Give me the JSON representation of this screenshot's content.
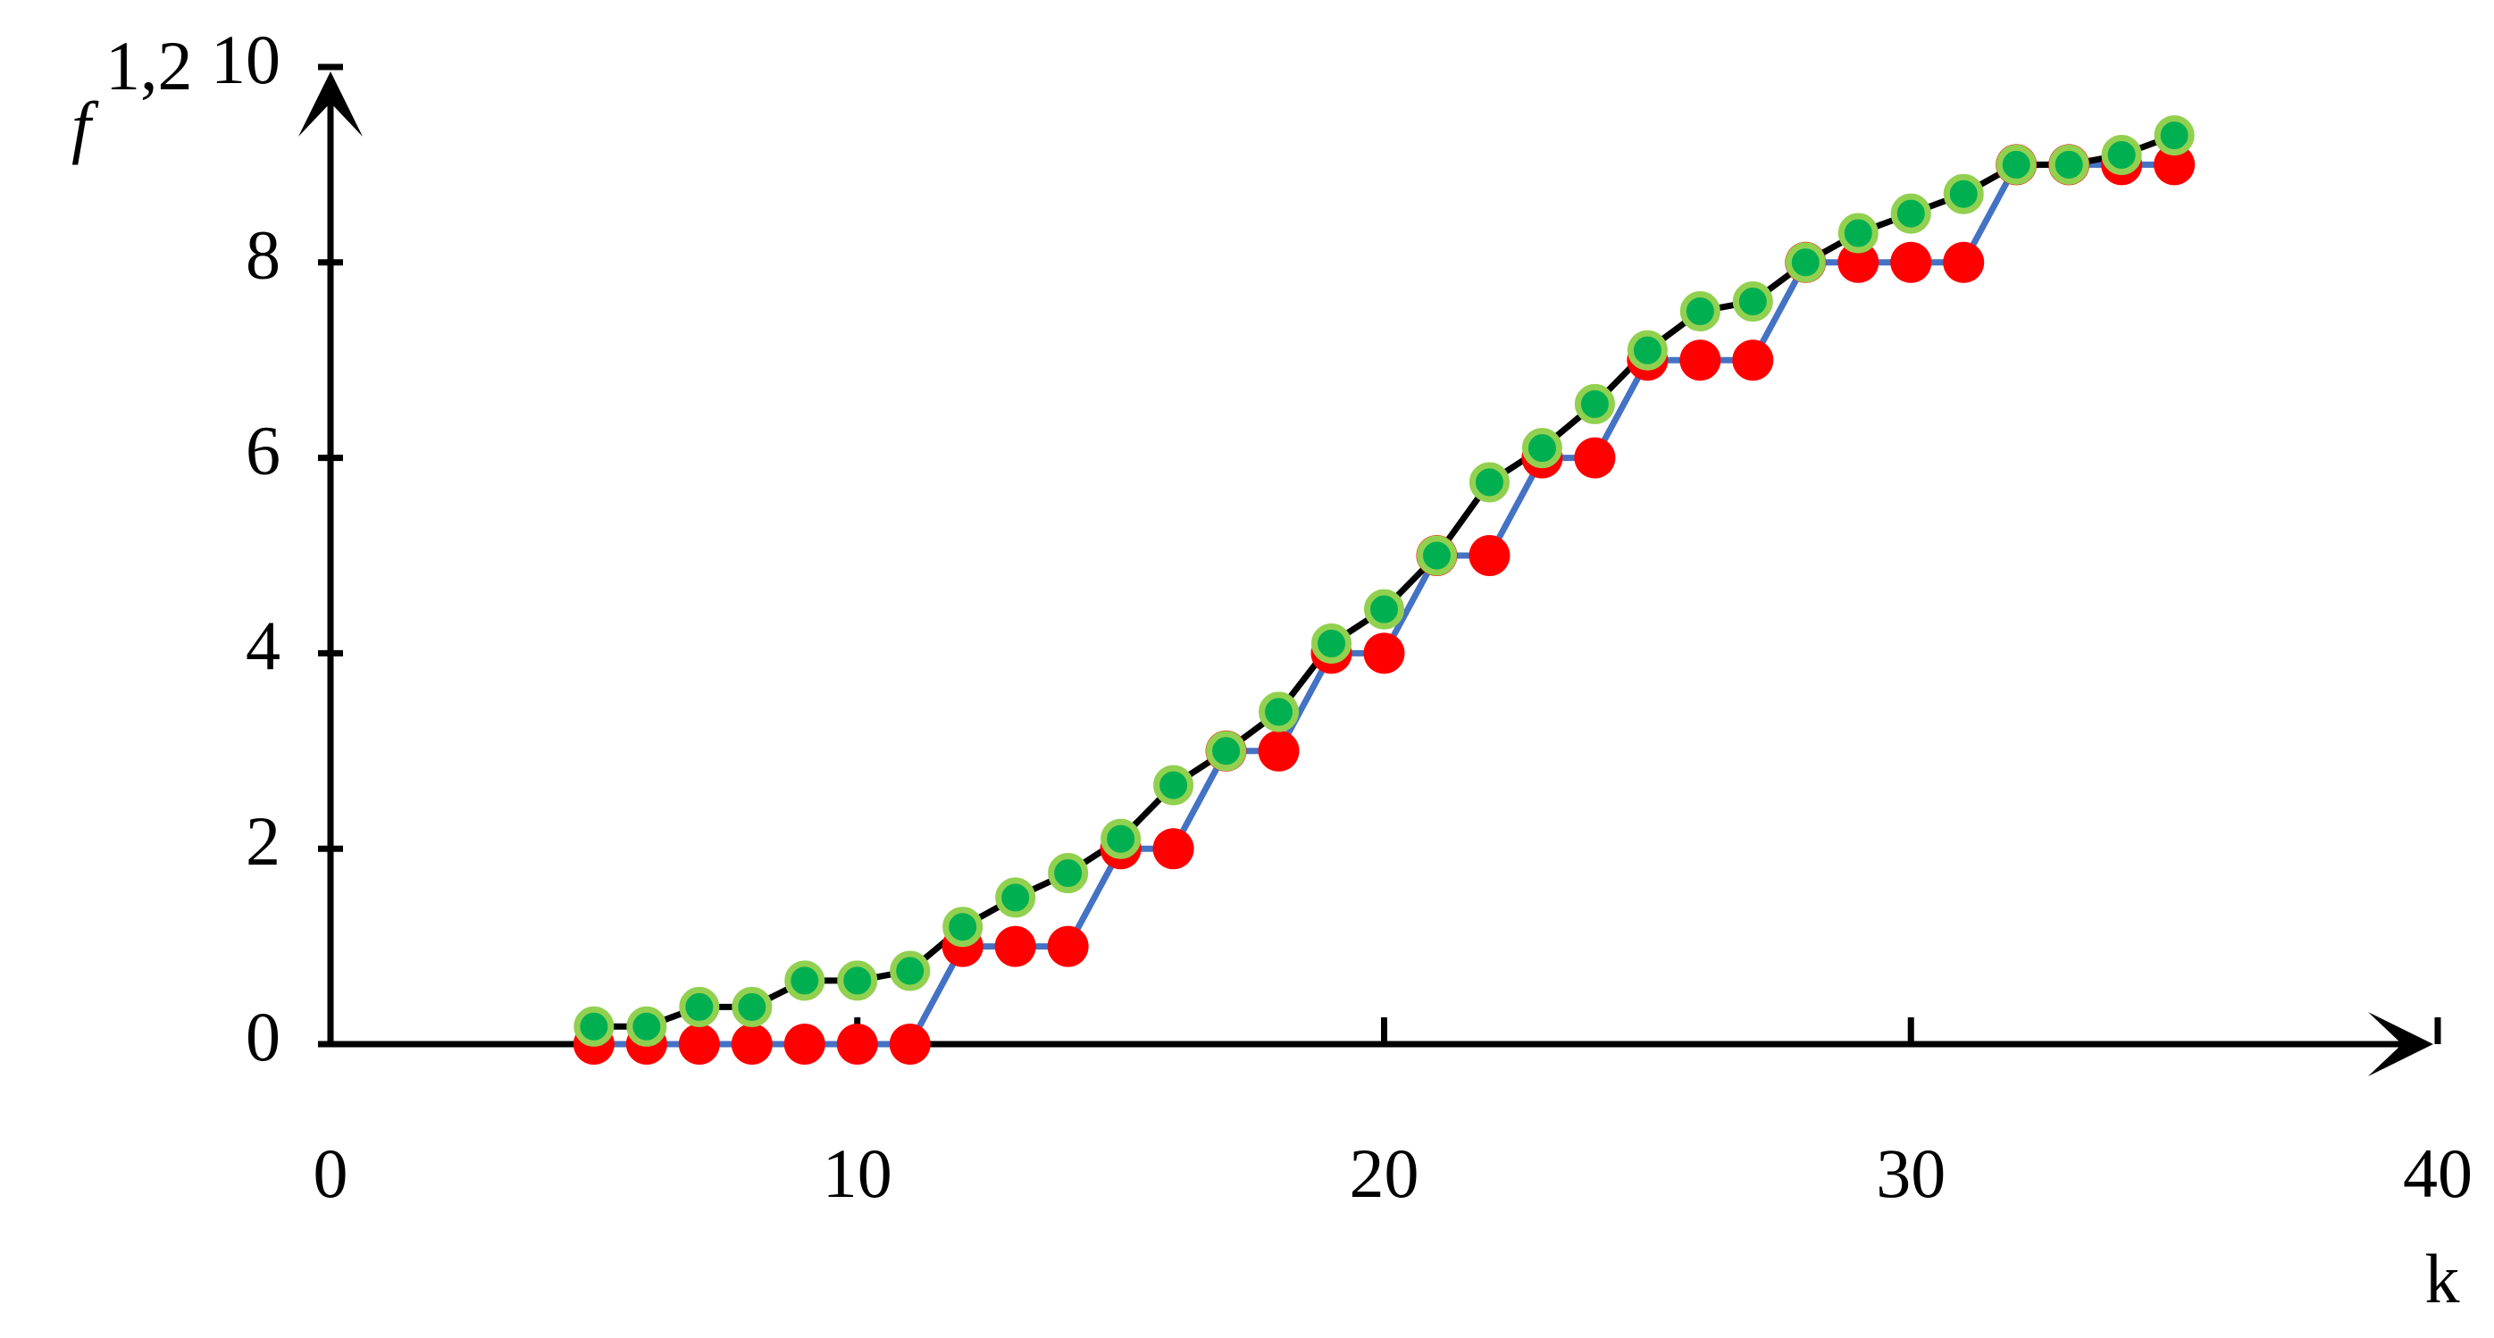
{
  "chart_data": {
    "type": "line",
    "ylabel": "f",
    "ylabel_subscript": "1,2",
    "xlabel": "k",
    "x": [
      5,
      6,
      7,
      8,
      9,
      10,
      11,
      12,
      13,
      14,
      15,
      16,
      17,
      18,
      19,
      20,
      21,
      22,
      23,
      24,
      25,
      26,
      27,
      28,
      29,
      30,
      31,
      32,
      33,
      34,
      35
    ],
    "series": [
      {
        "color": "#ff0000",
        "line_color": "#4472c4",
        "values": [
          0,
          0,
          0,
          0,
          0,
          0,
          0,
          1,
          1,
          1,
          2,
          2,
          3,
          3,
          4,
          4,
          5,
          5,
          6,
          6,
          7,
          7,
          7,
          8,
          8,
          8,
          8,
          9,
          9,
          9,
          9
        ]
      },
      {
        "color": "#00b050",
        "marker_edge_color": "#92d050",
        "line_color": "#000000",
        "values": [
          0.18,
          0.18,
          0.38,
          0.38,
          0.65,
          0.65,
          0.75,
          1.2,
          1.5,
          1.75,
          2.1,
          2.65,
          3.0,
          3.4,
          4.1,
          4.45,
          5.0,
          5.75,
          6.1,
          6.55,
          7.1,
          7.5,
          7.6,
          8.0,
          8.3,
          8.5,
          8.7,
          9.0,
          9.0,
          9.1,
          9.3
        ]
      }
    ],
    "xlim": [
      0,
      40
    ],
    "xticks": [
      0,
      10,
      20,
      30,
      40
    ],
    "ylim": [
      0,
      10
    ],
    "yticks": [
      0,
      2,
      4,
      6,
      8,
      10
    ],
    "grid": false
  }
}
